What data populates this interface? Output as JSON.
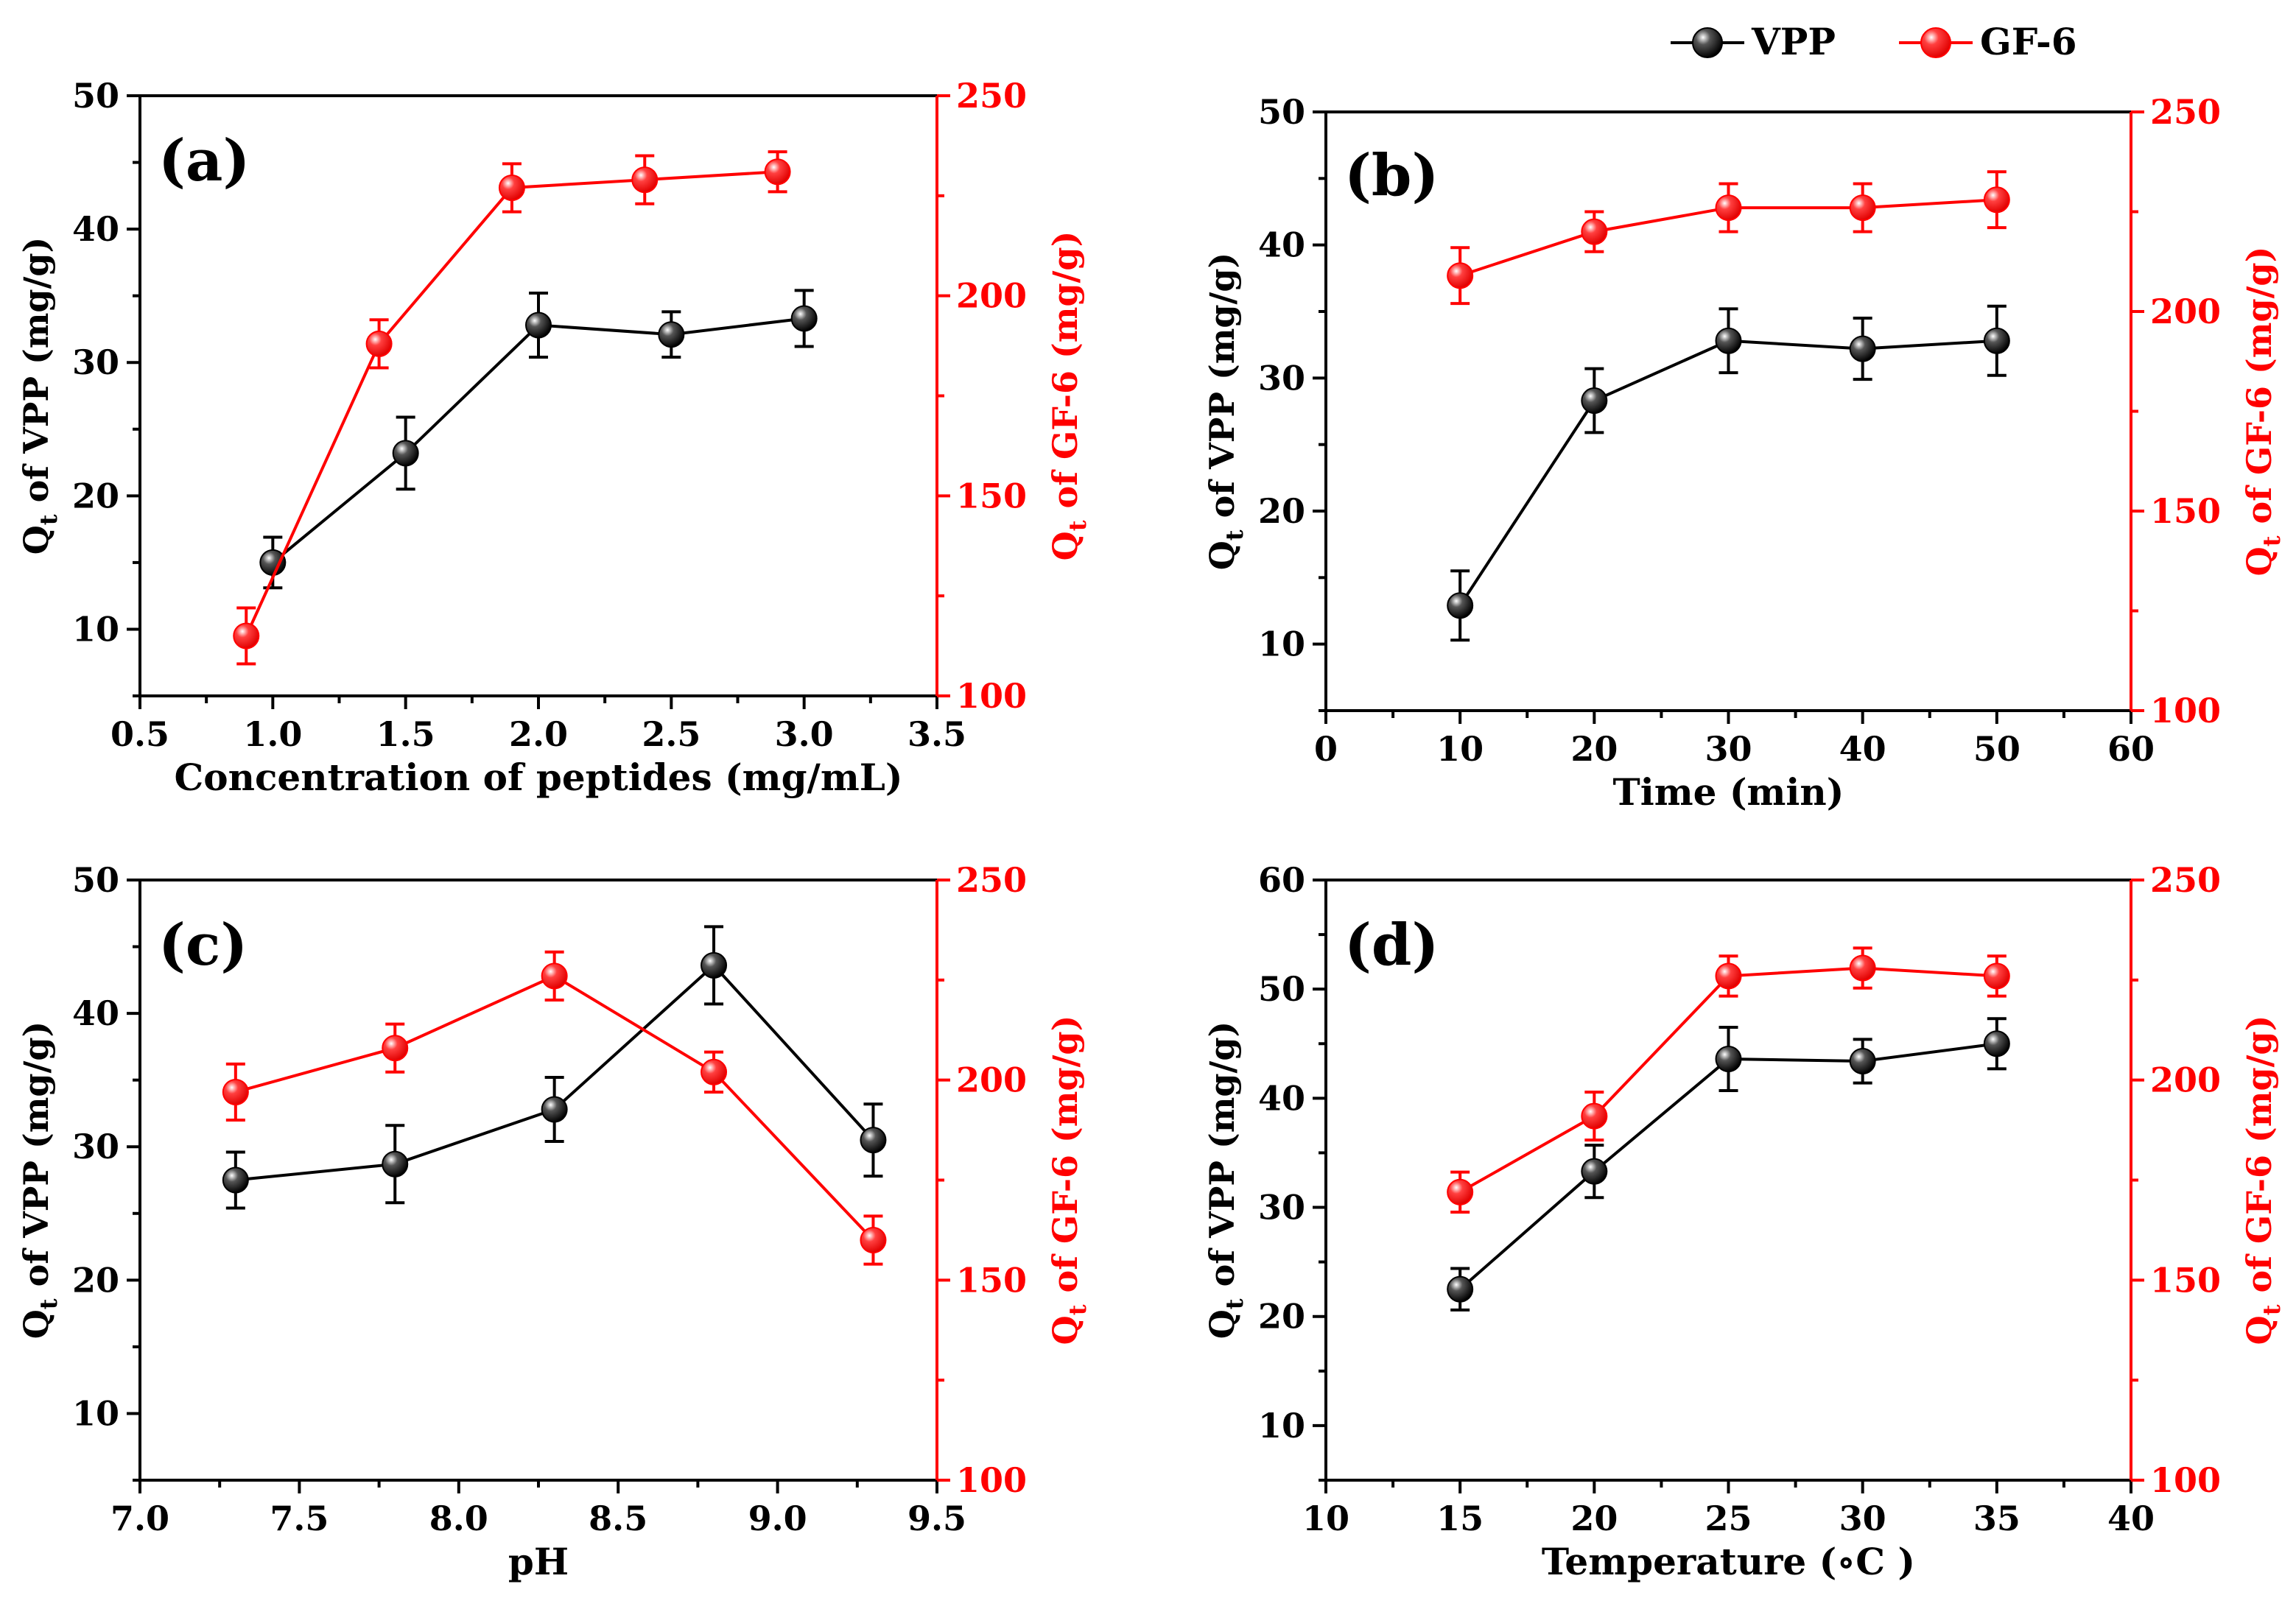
{
  "legend": {
    "entries": [
      {
        "label": "VPP",
        "color": "#000000"
      },
      {
        "label": "GF-6",
        "color": "#ff0000"
      }
    ]
  },
  "chart_data": [
    {
      "type": "line",
      "panel_label": "(a)",
      "xlabel": "Concentration of peptides (mg/mL)",
      "ylabel_left": {
        "main": "Q",
        "sub": "t",
        "rest": " of VPP (mg/g)"
      },
      "ylabel_right": {
        "main": "Q",
        "sub": "t",
        "rest": " of GF-6 (mg/g)"
      },
      "xlim": [
        0.5,
        3.5
      ],
      "xticks": [
        0.5,
        1.0,
        1.5,
        2.0,
        2.5,
        3.0,
        3.5
      ],
      "xtick_labels": [
        "0.5",
        "1.0",
        "1.5",
        "2.0",
        "2.5",
        "3.0",
        "3.5"
      ],
      "ylim_left": [
        5,
        50
      ],
      "yticks_left": [
        10,
        20,
        30,
        40,
        50
      ],
      "ytick_labels_left": [
        "10",
        "20",
        "30",
        "40",
        "50"
      ],
      "ylim_right": [
        100,
        250
      ],
      "yticks_right": [
        100,
        150,
        200,
        250
      ],
      "ytick_labels_right": [
        "100",
        "150",
        "200",
        "250"
      ],
      "series": [
        {
          "name": "VPP",
          "axis": "left",
          "color": "#000000",
          "x": [
            1.0,
            1.5,
            2.0,
            2.5,
            3.0
          ],
          "y": [
            15.0,
            23.2,
            32.8,
            32.1,
            33.3
          ],
          "err": [
            1.9,
            2.7,
            2.4,
            1.7,
            2.1
          ]
        },
        {
          "name": "GF-6",
          "axis": "right",
          "color": "#ff0000",
          "x": [
            0.9,
            1.4,
            1.9,
            2.4,
            2.9
          ],
          "y": [
            115,
            188,
            227,
            229,
            231
          ],
          "err": [
            7,
            6,
            6,
            6,
            5
          ]
        }
      ]
    },
    {
      "type": "line",
      "panel_label": "(b)",
      "xlabel": "Time (min)",
      "ylabel_left": {
        "main": "Q",
        "sub": "t",
        "rest": " of VPP (mg/g)"
      },
      "ylabel_right": {
        "main": "Q",
        "sub": "t",
        "rest": " of GF-6 (mg/g)"
      },
      "xlim": [
        0,
        60
      ],
      "xticks": [
        0,
        10,
        20,
        30,
        40,
        50,
        60
      ],
      "xtick_labels": [
        "0",
        "10",
        "20",
        "30",
        "40",
        "50",
        "60"
      ],
      "ylim_left": [
        5,
        50
      ],
      "yticks_left": [
        10,
        20,
        30,
        40,
        50
      ],
      "ytick_labels_left": [
        "10",
        "20",
        "30",
        "40",
        "50"
      ],
      "ylim_right": [
        100,
        250
      ],
      "yticks_right": [
        100,
        150,
        200,
        250
      ],
      "ytick_labels_right": [
        "100",
        "150",
        "200",
        "250"
      ],
      "series": [
        {
          "name": "VPP",
          "axis": "left",
          "color": "#000000",
          "x": [
            10,
            20,
            30,
            40,
            50
          ],
          "y": [
            12.9,
            28.3,
            32.8,
            32.2,
            32.8
          ],
          "err": [
            2.6,
            2.4,
            2.4,
            2.3,
            2.6
          ]
        },
        {
          "name": "GF-6",
          "axis": "right",
          "color": "#ff0000",
          "x": [
            10,
            20,
            30,
            40,
            50
          ],
          "y": [
            209,
            220,
            226,
            226,
            228
          ],
          "err": [
            7,
            5,
            6,
            6,
            7
          ]
        }
      ]
    },
    {
      "type": "line",
      "panel_label": "(c)",
      "xlabel": "pH",
      "ylabel_left": {
        "main": "Q",
        "sub": "t",
        "rest": " of VPP (mg/g)"
      },
      "ylabel_right": {
        "main": "Q",
        "sub": "t",
        "rest": " of GF-6 (mg/g)"
      },
      "xlim": [
        7.0,
        9.5
      ],
      "xticks": [
        7.0,
        7.5,
        8.0,
        8.5,
        9.0,
        9.5
      ],
      "xtick_labels": [
        "7.0",
        "7.5",
        "8.0",
        "8.5",
        "9.0",
        "9.5"
      ],
      "ylim_left": [
        5,
        50
      ],
      "yticks_left": [
        10,
        20,
        30,
        40,
        50
      ],
      "ytick_labels_left": [
        "10",
        "20",
        "30",
        "40",
        "50"
      ],
      "ylim_right": [
        100,
        250
      ],
      "yticks_right": [
        100,
        150,
        200,
        250
      ],
      "ytick_labels_right": [
        "100",
        "150",
        "200",
        "250"
      ],
      "series": [
        {
          "name": "VPP",
          "axis": "left",
          "color": "#000000",
          "x": [
            7.3,
            7.8,
            8.3,
            8.8,
            9.3
          ],
          "y": [
            27.5,
            28.7,
            32.8,
            43.6,
            30.5
          ],
          "err": [
            2.1,
            2.9,
            2.4,
            2.9,
            2.7
          ]
        },
        {
          "name": "GF-6",
          "axis": "right",
          "color": "#ff0000",
          "x": [
            7.3,
            7.8,
            8.3,
            8.8,
            9.3
          ],
          "y": [
            197,
            208,
            226,
            202,
            160
          ],
          "err": [
            7,
            6,
            6,
            5,
            6
          ]
        }
      ]
    },
    {
      "type": "line",
      "panel_label": "(d)",
      "xlabel": "Temperature (∘C )",
      "ylabel_left": {
        "main": "Q",
        "sub": "t",
        "rest": " of VPP (mg/g)"
      },
      "ylabel_right": {
        "main": "Q",
        "sub": "t",
        "rest": " of GF-6 (mg/g)"
      },
      "xlim": [
        10,
        40
      ],
      "xticks": [
        10,
        15,
        20,
        25,
        30,
        35,
        40
      ],
      "xtick_labels": [
        "10",
        "15",
        "20",
        "25",
        "30",
        "35",
        "40"
      ],
      "ylim_left": [
        5,
        60
      ],
      "yticks_left": [
        10,
        20,
        30,
        40,
        50,
        60
      ],
      "ytick_labels_left": [
        "10",
        "20",
        "30",
        "40",
        "50",
        "60"
      ],
      "ylim_right": [
        100,
        250
      ],
      "yticks_right": [
        100,
        150,
        200,
        250
      ],
      "ytick_labels_right": [
        "100",
        "150",
        "200",
        "250"
      ],
      "series": [
        {
          "name": "VPP",
          "axis": "left",
          "color": "#000000",
          "x": [
            15,
            20,
            25,
            30,
            35
          ],
          "y": [
            22.5,
            33.3,
            43.6,
            43.4,
            45.0
          ],
          "err": [
            1.9,
            2.4,
            2.9,
            2.0,
            2.3
          ]
        },
        {
          "name": "GF-6",
          "axis": "right",
          "color": "#ff0000",
          "x": [
            15,
            20,
            25,
            30,
            35
          ],
          "y": [
            172,
            191,
            226,
            228,
            226
          ],
          "err": [
            5,
            6,
            5,
            5,
            5
          ]
        }
      ]
    }
  ]
}
